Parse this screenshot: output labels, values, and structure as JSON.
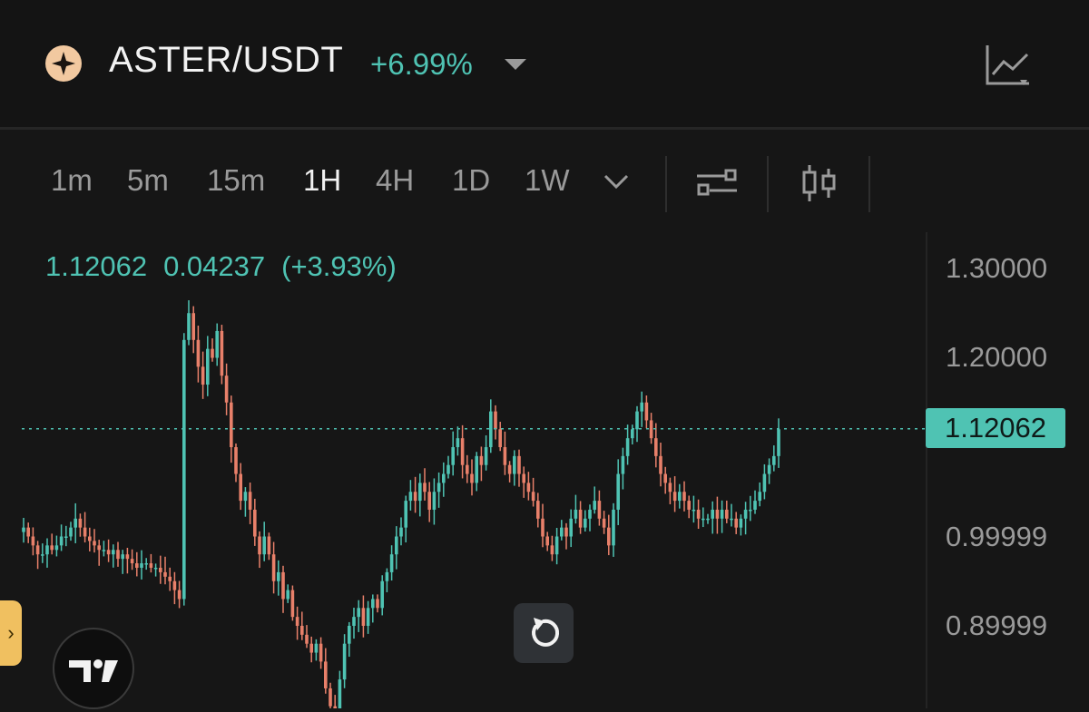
{
  "header": {
    "pair": "ASTER/USDT",
    "change": "+6.99%",
    "icons": {
      "pair": "aster-logo-icon",
      "caret": "caret-down-icon",
      "chart_type": "chart-type-icon"
    }
  },
  "toolbar": {
    "timeframes": [
      "1m",
      "5m",
      "15m",
      "1H",
      "4H",
      "1D",
      "1W"
    ],
    "active_timeframe": "1H",
    "icons": [
      "chevron-down-icon",
      "indicators-icon",
      "candle-style-icon"
    ]
  },
  "ohlc": {
    "price": "1.12062",
    "change": "0.04237",
    "change_pct": "(+3.93%)"
  },
  "price_axis": {
    "labels": [
      "1.30000",
      "1.20000",
      "0.99999",
      "0.89999"
    ],
    "current_price": "1.12062"
  },
  "colors": {
    "up": "#4fc3b3",
    "down": "#e8806a",
    "background": "#161616"
  },
  "chart_data": {
    "type": "candlestick",
    "interval": "1H",
    "y_axis_labels": [
      "1.30000",
      "1.20000",
      "0.99999",
      "0.89999"
    ],
    "last_price": 1.12062,
    "price_line": "dotted",
    "ylim": [
      0.78,
      1.32
    ],
    "close_path": [
      1.01,
      1.0,
      0.99,
      0.98,
      0.98,
      0.99,
      0.985,
      0.99,
      1.0,
      1.0,
      1.01,
      1.02,
      1.01,
      1.0,
      0.995,
      0.99,
      0.985,
      0.985,
      0.98,
      0.985,
      0.975,
      0.98,
      0.975,
      0.97,
      0.965,
      0.97,
      0.97,
      0.965,
      0.965,
      0.96,
      0.955,
      0.95,
      0.94,
      0.93,
      1.22,
      1.25,
      1.22,
      1.19,
      1.17,
      1.21,
      1.2,
      1.23,
      1.18,
      1.15,
      1.1,
      1.07,
      1.04,
      1.05,
      1.03,
      1.0,
      0.98,
      1.0,
      0.98,
      0.95,
      0.96,
      0.93,
      0.94,
      0.91,
      0.9,
      0.89,
      0.88,
      0.87,
      0.88,
      0.86,
      0.83,
      0.81,
      0.8,
      0.84,
      0.88,
      0.9,
      0.91,
      0.92,
      0.9,
      0.92,
      0.93,
      0.92,
      0.95,
      0.96,
      0.98,
      1.0,
      1.01,
      1.04,
      1.05,
      1.04,
      1.06,
      1.05,
      1.03,
      1.05,
      1.06,
      1.07,
      1.08,
      1.1,
      1.11,
      1.08,
      1.07,
      1.06,
      1.09,
      1.08,
      1.1,
      1.14,
      1.12,
      1.1,
      1.08,
      1.07,
      1.09,
      1.07,
      1.06,
      1.05,
      1.04,
      1.02,
      1.0,
      0.99,
      0.98,
      1.0,
      1.01,
      1.0,
      1.02,
      1.03,
      1.01,
      1.02,
      1.03,
      1.04,
      1.02,
      1.01,
      0.99,
      1.03,
      1.07,
      1.09,
      1.11,
      1.12,
      1.14,
      1.15,
      1.13,
      1.11,
      1.09,
      1.07,
      1.06,
      1.05,
      1.04,
      1.05,
      1.04,
      1.03,
      1.03,
      1.02,
      1.02,
      1.02,
      1.03,
      1.02,
      1.03,
      1.02,
      1.02,
      1.01,
      1.02,
      1.03,
      1.03,
      1.04,
      1.05,
      1.07,
      1.08,
      1.09,
      1.12
    ]
  }
}
